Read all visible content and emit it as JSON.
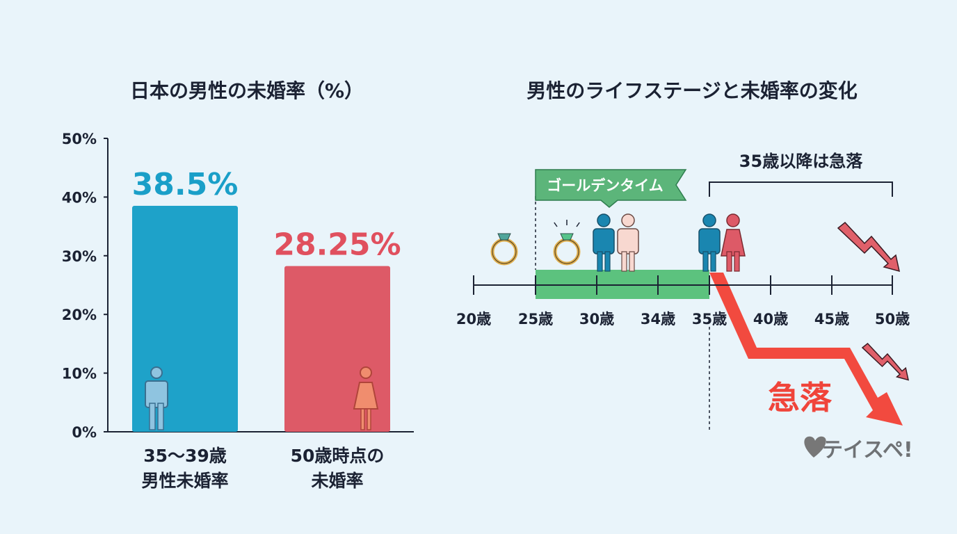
{
  "chart_data": [
    {
      "type": "bar",
      "title": "日本の男性の未婚率（%）",
      "categories": [
        "35〜39歳\n男性未婚率",
        "50歳時点の\n未婚率"
      ],
      "values": [
        38.5,
        28.25
      ],
      "value_labels": [
        "38.5%",
        "28.25%"
      ],
      "colors": [
        "#1ea2c9",
        "#dd5a67"
      ],
      "label_colors": [
        "#1a9fc8",
        "#e0505e"
      ],
      "yticks": [
        "0%",
        "10%",
        "20%",
        "30%",
        "40%",
        "50%"
      ],
      "ylim": [
        0,
        50
      ],
      "icons": [
        "male-person-icon",
        "female-person-icon"
      ]
    },
    {
      "type": "timeline",
      "title": "男性のライフステージと未婚率の変化",
      "ticks": [
        "20歳",
        "25歳",
        "30歳",
        "34歳",
        "35歳",
        "40歳",
        "45歳",
        "50歳"
      ],
      "highlight": {
        "label": "ゴールデンタイム",
        "from": "25歳",
        "to": "35歳",
        "color": "#5cc27e"
      },
      "bracket": {
        "label": "35歳以降は急落",
        "from": "35歳",
        "to": "50歳"
      },
      "drop_label": "急落",
      "drop_color": "#f24a3f",
      "icons": [
        "ring-icon",
        "diamond-ring-icon",
        "couple-holding-hands-icon",
        "couple-icon",
        "zigzag-down-arrow-icon"
      ]
    }
  ],
  "logo": {
    "text": "テイスペ!"
  }
}
